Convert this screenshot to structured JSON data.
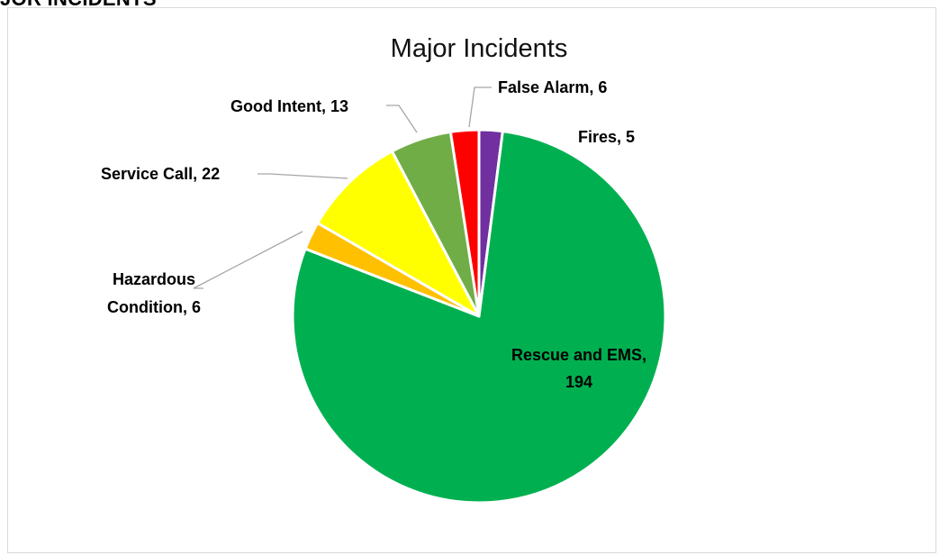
{
  "page": {
    "heading": "JOR INCIDENTS"
  },
  "chart_data": {
    "type": "pie",
    "title": "Major Incidents",
    "slices": [
      {
        "name": "Fires",
        "value": 5,
        "color": "#7030a0"
      },
      {
        "name": "Rescue and EMS",
        "value": 194,
        "color": "#00b050"
      },
      {
        "name": "Hazardous Condition",
        "value": 6,
        "color": "#ffc000"
      },
      {
        "name": "Service Call",
        "value": 22,
        "color": "#ffff00"
      },
      {
        "name": "Good Intent",
        "value": 13,
        "color": "#70ad47"
      },
      {
        "name": "False Alarm",
        "value": 6,
        "color": "#ff0000"
      }
    ],
    "labels": {
      "fires": "Fires, 5",
      "rescue_line1": "Rescue and EMS,",
      "rescue_line2": "194",
      "hazardous_line1": "Hazardous",
      "hazardous_line2": "Condition, 6",
      "service": "Service Call, 22",
      "good_intent": "Good Intent, 13",
      "false_alarm": "False Alarm, 6"
    },
    "legend": "none",
    "slice_border_color": "#ffffff"
  }
}
